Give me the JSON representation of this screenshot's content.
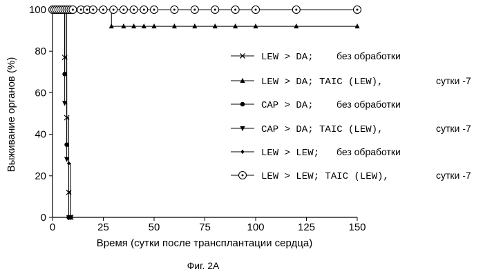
{
  "chart_data": {
    "type": "line",
    "xlabel": "Время (сутки после трансплантации сердца)",
    "ylabel": "Выживание органов (%)",
    "caption": "Фиг. 2А",
    "xlim": [
      0,
      150
    ],
    "ylim": [
      0,
      100
    ],
    "xticks": [
      0,
      25,
      50,
      75,
      100,
      125,
      150
    ],
    "yticks": [
      0,
      20,
      40,
      60,
      80,
      100
    ],
    "grid": false,
    "legend_position": "right",
    "series": [
      {
        "name": "LEW > DA; без обработки",
        "label_code": "LEW > DA;",
        "label_note": "без обработки",
        "marker": "x",
        "x": [
          0,
          1,
          2,
          3,
          4,
          5,
          6,
          7,
          8,
          9
        ],
        "y": [
          100,
          100,
          100,
          100,
          100,
          100,
          77,
          48,
          12,
          0
        ]
      },
      {
        "name": "LEW > DA; TAIC (LEW), сутки -7",
        "label_code": "LEW > DA; TAIC (LEW),",
        "label_note": "сутки -7",
        "marker": "triangle-up",
        "x": [
          0,
          5,
          10,
          15,
          20,
          25,
          29,
          35,
          40,
          45,
          50,
          60,
          70,
          80,
          90,
          100,
          120,
          150
        ],
        "y": [
          100,
          100,
          100,
          100,
          100,
          100,
          92,
          92,
          92,
          92,
          92,
          92,
          92,
          92,
          92,
          92,
          92,
          92
        ]
      },
      {
        "name": "CAP > DA; без обработки",
        "label_code": "CAP > DA;",
        "label_note": "без обработки",
        "marker": "circle-filled",
        "x": [
          0,
          1,
          2,
          3,
          4,
          5,
          6,
          7,
          8,
          9
        ],
        "y": [
          100,
          100,
          100,
          100,
          100,
          100,
          69,
          35,
          0,
          0
        ]
      },
      {
        "name": "CAP > DA; TAIC (LEW), сутки -7",
        "label_code": "CAP > DA; TAIC (LEW),",
        "label_note": "сутки -7",
        "marker": "triangle-down",
        "x": [
          0,
          1,
          2,
          3,
          4,
          5,
          6,
          7,
          8,
          9
        ],
        "y": [
          100,
          100,
          100,
          100,
          100,
          100,
          55,
          28,
          0,
          0
        ]
      },
      {
        "name": "LEW > LEW; без обработки",
        "label_code": "LEW > LEW;",
        "label_note": "без обработки",
        "marker": "diamond",
        "x": [
          0,
          1,
          2,
          3,
          4,
          5,
          6,
          7,
          8,
          9
        ],
        "y": [
          100,
          100,
          100,
          100,
          100,
          100,
          100,
          35,
          26,
          0
        ]
      },
      {
        "name": "LEW > LEW; TAIC (LEW), сутки -7",
        "label_code": "LEW > LEW; TAIC (LEW),",
        "label_note": "сутки -7",
        "marker": "circle-open",
        "x": [
          0,
          1,
          2,
          3,
          4,
          5,
          6,
          7,
          8,
          9,
          10,
          14,
          17,
          20,
          25,
          30,
          35,
          40,
          45,
          50,
          60,
          70,
          80,
          90,
          100,
          120,
          150
        ],
        "y": [
          100,
          100,
          100,
          100,
          100,
          100,
          100,
          100,
          100,
          100,
          100,
          100,
          100,
          100,
          100,
          100,
          100,
          100,
          100,
          100,
          100,
          100,
          100,
          100,
          100,
          100,
          100
        ]
      }
    ]
  }
}
